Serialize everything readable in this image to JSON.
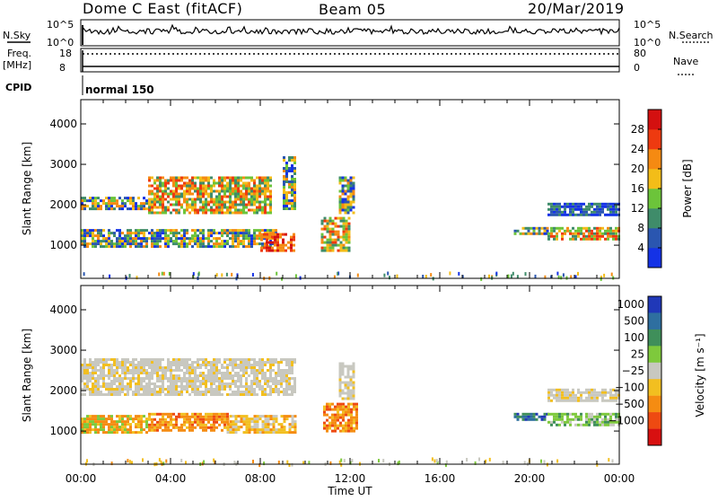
{
  "header": {
    "station": "Dome C East (fitACF)",
    "beam": "Beam 05",
    "date": "20/Mar/2019"
  },
  "strip": {
    "nsky_label": "N.Sky",
    "nsky_ticks": [
      "10^5",
      "10^0"
    ],
    "nsearch_label": "N.Search",
    "nsearch_ticks": [
      "10^5",
      "10^0"
    ],
    "freq_label_1": "Freq.",
    "freq_label_2": "[MHz]",
    "freq_ticks": [
      "18",
      "8"
    ],
    "nave_label": "Nave",
    "nave_ticks": [
      "80",
      "0"
    ],
    "cpid_label": "CPID",
    "cpid_value": "normal 150"
  },
  "chart_data": [
    {
      "type": "heatmap",
      "title": "",
      "xlabel": "",
      "ylabel": "Slant Range [km]",
      "yticks": [
        "1000",
        "2000",
        "3000",
        "4000"
      ],
      "ylim": [
        180,
        4600
      ],
      "xlim_hours": [
        0,
        24
      ],
      "colorbar_label": "Power [dB]",
      "colorbar_ticks": [
        "4",
        "8",
        "12",
        "16",
        "20",
        "24",
        "28"
      ],
      "colorbar_range": [
        0,
        32
      ],
      "colors": [
        "#1432e6",
        "#2a56b0",
        "#3f8c6a",
        "#6cc43a",
        "#f3bd18",
        "#f58a12",
        "#ee3a10",
        "#d41010"
      ],
      "echo_regions": [
        {
          "t0": 0.0,
          "t1": 3.0,
          "r0": 1900,
          "r1": 2200,
          "level": "mid"
        },
        {
          "t0": 3.0,
          "t1": 8.5,
          "r0": 1800,
          "r1": 2700,
          "level": "high"
        },
        {
          "t0": 0.0,
          "t1": 8.7,
          "r0": 1000,
          "r1": 1400,
          "level": "mid"
        },
        {
          "t0": 8.0,
          "t1": 9.5,
          "r0": 900,
          "r1": 1300,
          "level": "max"
        },
        {
          "t0": 9.0,
          "t1": 9.6,
          "r0": 1900,
          "r1": 3200,
          "level": "mid"
        },
        {
          "t0": 10.7,
          "t1": 12.0,
          "r0": 900,
          "r1": 1700,
          "level": "high"
        },
        {
          "t0": 11.5,
          "t1": 12.2,
          "r0": 1800,
          "r1": 2700,
          "level": "mid"
        },
        {
          "t0": 19.3,
          "t1": 20.8,
          "r0": 1300,
          "r1": 1450,
          "level": "mid"
        },
        {
          "t0": 20.8,
          "t1": 24.0,
          "r0": 1150,
          "r1": 1450,
          "level": "high"
        },
        {
          "t0": 20.8,
          "t1": 24.0,
          "r0": 1750,
          "r1": 2050,
          "level": "low"
        }
      ]
    },
    {
      "type": "heatmap",
      "title": "",
      "xlabel": "Time UT",
      "ylabel": "Slant Range [km]",
      "yticks": [
        "1000",
        "2000",
        "3000",
        "4000"
      ],
      "ylim": [
        180,
        4600
      ],
      "xticks": [
        "00:00",
        "04:00",
        "08:00",
        "12:00",
        "16:00",
        "20:00",
        "00:00"
      ],
      "xlim_hours": [
        0,
        24
      ],
      "colorbar_label": "Velocity [m s⁻¹]",
      "colorbar_ticks": [
        "1000",
        "500",
        "100",
        "25",
        "−25",
        "−100",
        "−500",
        "−1000"
      ],
      "colors": [
        "#2038b8",
        "#2e6fa0",
        "#3f8f5a",
        "#7ec93c",
        "#c8c8c0",
        "#f2bf20",
        "#f58c12",
        "#ee4a12",
        "#d81010"
      ],
      "echo_regions": [
        {
          "t0": 0.0,
          "t1": 9.6,
          "r0": 1900,
          "r1": 2800,
          "level": "grey"
        },
        {
          "t0": 0.0,
          "t1": 3.0,
          "r0": 1000,
          "r1": 1400,
          "level": "orange"
        },
        {
          "t0": 3.0,
          "t1": 6.5,
          "r0": 1000,
          "r1": 1450,
          "level": "darkorange"
        },
        {
          "t0": 6.5,
          "t1": 9.6,
          "r0": 1000,
          "r1": 1400,
          "level": "lightorange"
        },
        {
          "t0": 10.8,
          "t1": 12.3,
          "r0": 1000,
          "r1": 1700,
          "level": "darkorange"
        },
        {
          "t0": 11.5,
          "t1": 12.2,
          "r0": 1800,
          "r1": 2700,
          "level": "grey"
        },
        {
          "t0": 19.3,
          "t1": 20.8,
          "r0": 1300,
          "r1": 1450,
          "level": "blue"
        },
        {
          "t0": 20.8,
          "t1": 24.0,
          "r0": 1150,
          "r1": 1450,
          "level": "green"
        },
        {
          "t0": 20.8,
          "t1": 24.0,
          "r0": 1750,
          "r1": 2050,
          "level": "grey"
        }
      ]
    }
  ]
}
